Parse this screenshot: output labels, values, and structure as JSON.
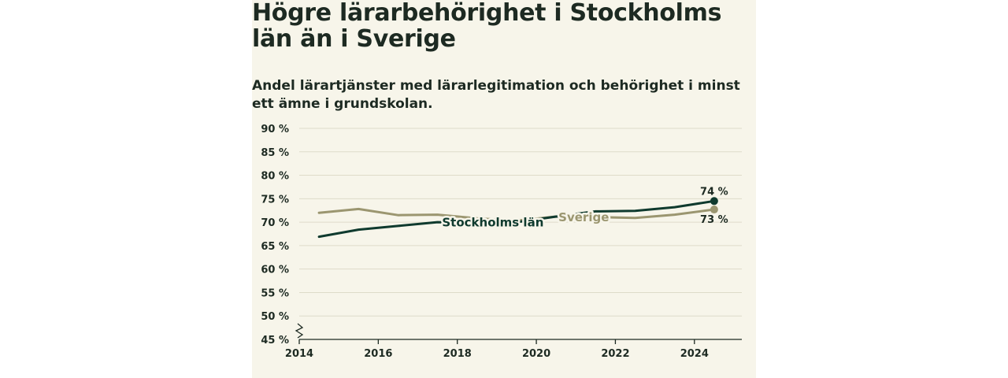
{
  "chart_data": {
    "type": "line",
    "title": "Högre lärarbehörighet i Stockholms län än i Sverige",
    "subtitle": "Andel lärartjänster med lärarlegitimation och behörighet i minst ett ämne i grundskolan.",
    "x_ticks": [
      "2014",
      "2016",
      "2018",
      "2020",
      "2022",
      "2024"
    ],
    "y_ticks": [
      "45 %",
      "50 %",
      "55 %",
      "60 %",
      "65 %",
      "70 %",
      "75 %",
      "80 %",
      "85 %",
      "90 %"
    ],
    "xlim": [
      2014,
      2025.2
    ],
    "ylim": [
      45,
      90
    ],
    "grid": true,
    "series": [
      {
        "name": "Sverige",
        "color": "#9b9670",
        "x": [
          2014.5,
          2015.5,
          2016.5,
          2017.5,
          2018.5,
          2019.5,
          2020.5,
          2021.5,
          2022.5,
          2023.5,
          2024.5
        ],
        "y": [
          72.0,
          72.8,
          71.5,
          71.6,
          70.8,
          70.3,
          71.2,
          71.1,
          70.9,
          71.6,
          72.7
        ],
        "end_label": "73 %"
      },
      {
        "name": "Stockholms län",
        "color": "#0f3a2e",
        "x": [
          2014.5,
          2015.5,
          2016.5,
          2017.5,
          2018.5,
          2019.5,
          2020.5,
          2021.5,
          2022.5,
          2023.5,
          2024.5
        ],
        "y": [
          66.9,
          68.4,
          69.2,
          70.0,
          69.8,
          70.0,
          71.2,
          72.3,
          72.4,
          73.2,
          74.5
        ],
        "end_label": "74 %"
      }
    ]
  }
}
